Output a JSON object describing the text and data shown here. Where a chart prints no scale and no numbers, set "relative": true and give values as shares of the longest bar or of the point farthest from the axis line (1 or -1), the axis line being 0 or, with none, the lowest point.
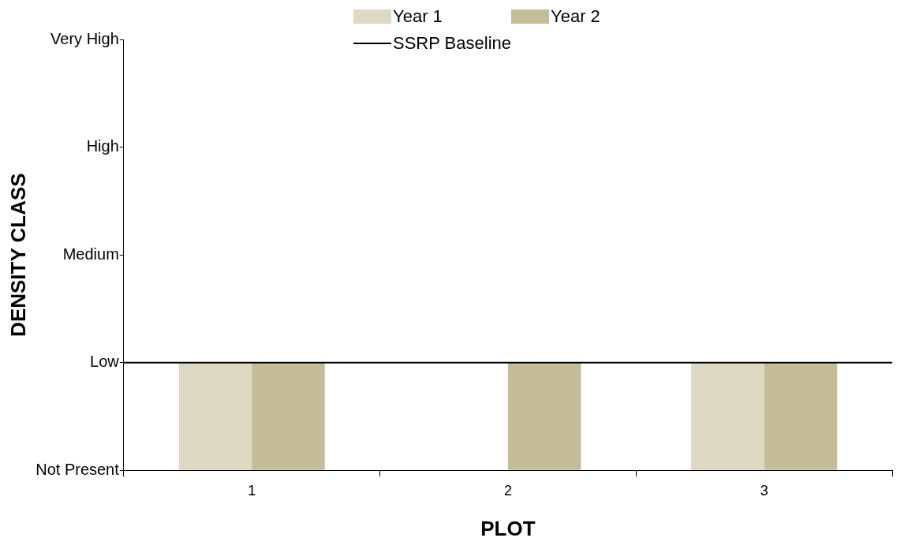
{
  "chart_data": {
    "type": "bar",
    "xlabel": "PLOT",
    "ylabel": "DENSITY CLASS",
    "categories": [
      "1",
      "2",
      "3"
    ],
    "series": [
      {
        "name": "Year 1",
        "color": "#ddd9c3",
        "values": [
          1,
          0,
          1
        ]
      },
      {
        "name": "Year 2",
        "color": "#c4bd97",
        "values": [
          1,
          1,
          1
        ]
      }
    ],
    "relative": true,
    "annotations": [
      "Not Present",
      "Low",
      "Medium",
      "High",
      "Very High"
    ],
    "ref_lines": [
      {
        "axis": "y",
        "value": 1,
        "label": "SSRP Baseline",
        "color": "#000000",
        "line_style": "solid"
      }
    ],
    "grid": false,
    "legend": "top"
  }
}
